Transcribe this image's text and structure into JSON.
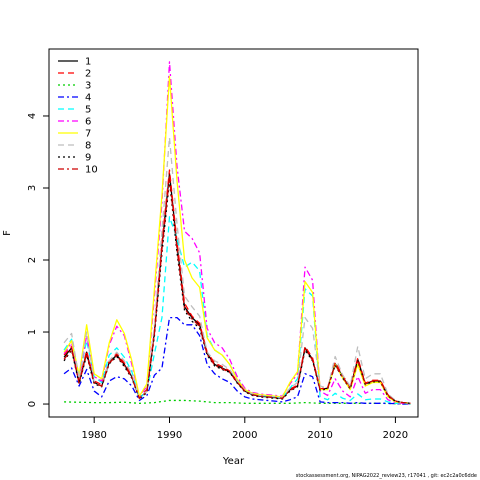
{
  "chart_data": {
    "type": "line",
    "xlabel": "Year",
    "ylabel": "F",
    "xlim": [
      1974,
      2023
    ],
    "ylim": [
      -0.18,
      4.93
    ],
    "x_ticks": [
      1980,
      1990,
      2000,
      2010,
      2020
    ],
    "y_ticks": [
      0,
      1,
      2,
      3,
      4
    ],
    "legend_position": "top-left",
    "series": [
      {
        "name": "1",
        "color": "#000000",
        "dash": "solid",
        "x": [
          1976,
          1977,
          1978,
          1979,
          1980,
          1981,
          1982,
          1983,
          1984,
          1985,
          1986,
          1987,
          1988,
          1989,
          1990,
          1991,
          1992,
          1993,
          1994,
          1995,
          1996,
          1997,
          1998,
          1999,
          2000,
          2001,
          2002,
          2003,
          2004,
          2005,
          2006,
          2007,
          2008,
          2009,
          2010,
          2011,
          2012,
          2013,
          2014,
          2015,
          2016,
          2017,
          2018,
          2019,
          2020,
          2021,
          2022
        ],
        "y": [
          0.65,
          0.78,
          0.3,
          0.72,
          0.3,
          0.25,
          0.58,
          0.68,
          0.55,
          0.38,
          0.08,
          0.18,
          1.0,
          2.2,
          3.2,
          2.2,
          1.35,
          1.2,
          1.1,
          0.7,
          0.55,
          0.5,
          0.45,
          0.3,
          0.18,
          0.13,
          0.11,
          0.1,
          0.09,
          0.08,
          0.2,
          0.25,
          0.78,
          0.62,
          0.2,
          0.22,
          0.56,
          0.38,
          0.22,
          0.62,
          0.28,
          0.32,
          0.32,
          0.12,
          0.04,
          0.02,
          0.01
        ]
      },
      {
        "name": "2",
        "color": "#ff0000",
        "dash": "dashed",
        "x": [
          1976,
          1977,
          1978,
          1979,
          1980,
          1981,
          1982,
          1983,
          1984,
          1985,
          1986,
          1987,
          1988,
          1989,
          1990,
          1991,
          1992,
          1993,
          1994,
          1995,
          1996,
          1997,
          1998,
          1999,
          2000,
          2001,
          2002,
          2003,
          2004,
          2005,
          2006,
          2007,
          2008,
          2009,
          2010,
          2011,
          2012,
          2013,
          2014,
          2015,
          2016,
          2017,
          2018,
          2019,
          2020,
          2021,
          2022
        ],
        "y": [
          0.68,
          0.8,
          0.32,
          0.74,
          0.32,
          0.27,
          0.6,
          0.7,
          0.57,
          0.4,
          0.09,
          0.2,
          1.02,
          2.25,
          3.25,
          2.25,
          1.4,
          1.22,
          1.12,
          0.72,
          0.57,
          0.52,
          0.46,
          0.31,
          0.19,
          0.14,
          0.12,
          0.11,
          0.1,
          0.09,
          0.21,
          0.26,
          0.8,
          0.64,
          0.21,
          0.23,
          0.58,
          0.4,
          0.23,
          0.64,
          0.29,
          0.33,
          0.33,
          0.13,
          0.04,
          0.02,
          0.01
        ]
      },
      {
        "name": "3",
        "color": "#00cd00",
        "dash": "dotted",
        "x": [
          1976,
          1978,
          1980,
          1982,
          1984,
          1986,
          1988,
          1990,
          1992,
          1994,
          1996,
          1998,
          2000,
          2002,
          2004,
          2006,
          2008,
          2010,
          2012,
          2014,
          2016,
          2018,
          2020,
          2022
        ],
        "y": [
          0.03,
          0.025,
          0.02,
          0.02,
          0.025,
          0.01,
          0.02,
          0.05,
          0.05,
          0.04,
          0.02,
          0.02,
          0.01,
          0.01,
          0.01,
          0.01,
          0.02,
          0.01,
          0.01,
          0.01,
          0.01,
          0.01,
          0.005,
          0.0
        ]
      },
      {
        "name": "4",
        "color": "#0000ff",
        "dash": "dashdot",
        "x": [
          1976,
          1977,
          1978,
          1979,
          1980,
          1981,
          1982,
          1983,
          1984,
          1985,
          1986,
          1987,
          1988,
          1989,
          1990,
          1991,
          1992,
          1993,
          1994,
          1995,
          1996,
          1997,
          1998,
          1999,
          2000,
          2001,
          2002,
          2003,
          2004,
          2005,
          2006,
          2007,
          2008,
          2009,
          2010,
          2011,
          2012,
          2013,
          2014,
          2015,
          2016,
          2017,
          2018,
          2019,
          2020,
          2021,
          2022
        ],
        "y": [
          0.42,
          0.5,
          0.25,
          0.48,
          0.18,
          0.1,
          0.32,
          0.38,
          0.35,
          0.25,
          0.05,
          0.12,
          0.4,
          0.5,
          1.2,
          1.2,
          1.1,
          1.1,
          0.95,
          0.55,
          0.42,
          0.35,
          0.3,
          0.18,
          0.1,
          0.07,
          0.06,
          0.05,
          0.04,
          0.03,
          0.06,
          0.1,
          0.42,
          0.38,
          0.03,
          0.02,
          0.02,
          0.02,
          0.01,
          0.02,
          0.01,
          0.01,
          0.01,
          0.01,
          0.005,
          0.0,
          0.0
        ]
      },
      {
        "name": "5",
        "color": "#00ffff",
        "dash": "dashed",
        "x": [
          1976,
          1977,
          1978,
          1979,
          1980,
          1981,
          1982,
          1983,
          1984,
          1985,
          1986,
          1987,
          1988,
          1989,
          1990,
          1991,
          1992,
          1993,
          1994,
          1995,
          1996,
          1997,
          1998,
          1999,
          2000,
          2001,
          2002,
          2003,
          2004,
          2005,
          2006,
          2007,
          2008,
          2009,
          2010,
          2011,
          2012,
          2013,
          2014,
          2015,
          2016,
          2017,
          2018,
          2019,
          2020,
          2021,
          2022
        ],
        "y": [
          0.75,
          0.9,
          0.38,
          0.88,
          0.38,
          0.3,
          0.68,
          0.78,
          0.65,
          0.45,
          0.08,
          0.18,
          0.7,
          1.2,
          2.6,
          2.3,
          1.9,
          1.97,
          1.85,
          0.95,
          0.75,
          0.68,
          0.55,
          0.35,
          0.2,
          0.14,
          0.12,
          0.11,
          0.1,
          0.09,
          0.22,
          0.35,
          1.6,
          1.5,
          0.1,
          0.06,
          0.15,
          0.08,
          0.05,
          0.14,
          0.06,
          0.07,
          0.07,
          0.03,
          0.01,
          0.01,
          0.0
        ]
      },
      {
        "name": "6",
        "color": "#ff00ff",
        "dash": "dashdot",
        "x": [
          1976,
          1977,
          1978,
          1979,
          1980,
          1981,
          1982,
          1983,
          1984,
          1985,
          1986,
          1987,
          1988,
          1989,
          1990,
          1991,
          1992,
          1993,
          1994,
          1995,
          1996,
          1997,
          1998,
          1999,
          2000,
          2001,
          2002,
          2003,
          2004,
          2005,
          2006,
          2007,
          2008,
          2009,
          2010,
          2011,
          2012,
          2013,
          2014,
          2015,
          2016,
          2017,
          2018,
          2019,
          2020,
          2021,
          2022
        ],
        "y": [
          0.7,
          0.85,
          0.36,
          0.95,
          0.38,
          0.32,
          0.82,
          1.08,
          0.95,
          0.55,
          0.1,
          0.25,
          1.5,
          2.8,
          4.75,
          3.3,
          2.4,
          2.3,
          2.1,
          1.05,
          0.85,
          0.78,
          0.62,
          0.38,
          0.22,
          0.16,
          0.14,
          0.13,
          0.12,
          0.11,
          0.28,
          0.42,
          1.9,
          1.72,
          0.18,
          0.12,
          0.35,
          0.18,
          0.1,
          0.38,
          0.15,
          0.2,
          0.2,
          0.06,
          0.02,
          0.01,
          0.0
        ]
      },
      {
        "name": "7",
        "color": "#ffff00",
        "dash": "solid",
        "x": [
          1976,
          1977,
          1978,
          1979,
          1980,
          1981,
          1982,
          1983,
          1984,
          1985,
          1986,
          1987,
          1988,
          1989,
          1990,
          1991,
          1992,
          1993,
          1994,
          1995,
          1996,
          1997,
          1998,
          1999,
          2000,
          2001,
          2002,
          2003,
          2004,
          2005,
          2006,
          2007,
          2008,
          2009,
          2010,
          2011,
          2012,
          2013,
          2014,
          2015,
          2016,
          2017,
          2018,
          2019,
          2020,
          2021,
          2022
        ],
        "y": [
          0.72,
          0.88,
          0.4,
          1.1,
          0.42,
          0.35,
          0.85,
          1.17,
          0.98,
          0.6,
          0.11,
          0.28,
          1.6,
          2.9,
          4.55,
          3.1,
          2.0,
          1.75,
          1.62,
          0.92,
          0.75,
          0.68,
          0.55,
          0.34,
          0.2,
          0.15,
          0.13,
          0.12,
          0.11,
          0.1,
          0.3,
          0.45,
          1.7,
          1.55,
          0.2,
          0.2,
          0.55,
          0.36,
          0.2,
          0.55,
          0.25,
          0.3,
          0.3,
          0.1,
          0.03,
          0.02,
          0.01
        ]
      },
      {
        "name": "8",
        "color": "#bebebe",
        "dash": "dashed",
        "x": [
          1976,
          1977,
          1978,
          1979,
          1980,
          1981,
          1982,
          1983,
          1984,
          1985,
          1986,
          1987,
          1988,
          1989,
          1990,
          1991,
          1992,
          1993,
          1994,
          1995,
          1996,
          1997,
          1998,
          1999,
          2000,
          2001,
          2002,
          2003,
          2004,
          2005,
          2006,
          2007,
          2008,
          2009,
          2010,
          2011,
          2012,
          2013,
          2014,
          2015,
          2016,
          2017,
          2018,
          2019,
          2020,
          2021,
          2022
        ],
        "y": [
          0.85,
          0.98,
          0.35,
          1.0,
          0.3,
          0.25,
          0.6,
          0.72,
          0.6,
          0.42,
          0.08,
          0.18,
          1.1,
          2.4,
          3.7,
          2.5,
          1.5,
          1.35,
          1.22,
          0.72,
          0.6,
          0.55,
          0.48,
          0.32,
          0.19,
          0.14,
          0.12,
          0.11,
          0.1,
          0.09,
          0.22,
          0.3,
          1.2,
          1.05,
          0.25,
          0.22,
          0.66,
          0.4,
          0.25,
          0.8,
          0.35,
          0.42,
          0.42,
          0.14,
          0.05,
          0.02,
          0.01
        ]
      },
      {
        "name": "9",
        "color": "#000000",
        "dash": "dotted",
        "x": [
          1976,
          1977,
          1978,
          1979,
          1980,
          1981,
          1982,
          1983,
          1984,
          1985,
          1986,
          1987,
          1988,
          1989,
          1990,
          1991,
          1992,
          1993,
          1994,
          1995,
          1996,
          1997,
          1998,
          1999,
          2000,
          2001,
          2002,
          2003,
          2004,
          2005,
          2006,
          2007,
          2008,
          2009,
          2010,
          2011,
          2012,
          2013,
          2014,
          2015,
          2016,
          2017,
          2018,
          2019,
          2020,
          2021,
          2022
        ],
        "y": [
          0.6,
          0.75,
          0.28,
          0.68,
          0.28,
          0.24,
          0.56,
          0.66,
          0.52,
          0.36,
          0.07,
          0.16,
          0.95,
          2.1,
          3.1,
          2.1,
          1.3,
          1.15,
          1.05,
          0.68,
          0.53,
          0.48,
          0.44,
          0.29,
          0.17,
          0.12,
          0.1,
          0.09,
          0.08,
          0.07,
          0.18,
          0.24,
          0.75,
          0.6,
          0.19,
          0.21,
          0.54,
          0.36,
          0.21,
          0.6,
          0.27,
          0.31,
          0.31,
          0.11,
          0.04,
          0.02,
          0.01
        ]
      },
      {
        "name": "10",
        "color": "#cd0000",
        "dash": "dashdot",
        "x": [
          1976,
          1977,
          1978,
          1979,
          1980,
          1981,
          1982,
          1983,
          1984,
          1985,
          1986,
          1987,
          1988,
          1989,
          1990,
          1991,
          1992,
          1993,
          1994,
          1995,
          1996,
          1997,
          1998,
          1999,
          2000,
          2001,
          2002,
          2003,
          2004,
          2005,
          2006,
          2007,
          2008,
          2009,
          2010,
          2011,
          2012,
          2013,
          2014,
          2015,
          2016,
          2017,
          2018,
          2019,
          2020,
          2021,
          2022
        ],
        "y": [
          0.62,
          0.76,
          0.29,
          0.7,
          0.29,
          0.25,
          0.57,
          0.67,
          0.54,
          0.37,
          0.08,
          0.17,
          0.98,
          2.15,
          3.15,
          2.15,
          1.33,
          1.18,
          1.08,
          0.69,
          0.54,
          0.49,
          0.44,
          0.3,
          0.18,
          0.13,
          0.11,
          0.1,
          0.09,
          0.08,
          0.19,
          0.25,
          0.77,
          0.61,
          0.2,
          0.22,
          0.55,
          0.37,
          0.22,
          0.61,
          0.28,
          0.32,
          0.32,
          0.12,
          0.04,
          0.02,
          0.01
        ]
      }
    ]
  },
  "footer": {
    "text": "stockassessment.org, NIPAG2022_review23, r17041 , git: ec2c2a0c6dde"
  }
}
